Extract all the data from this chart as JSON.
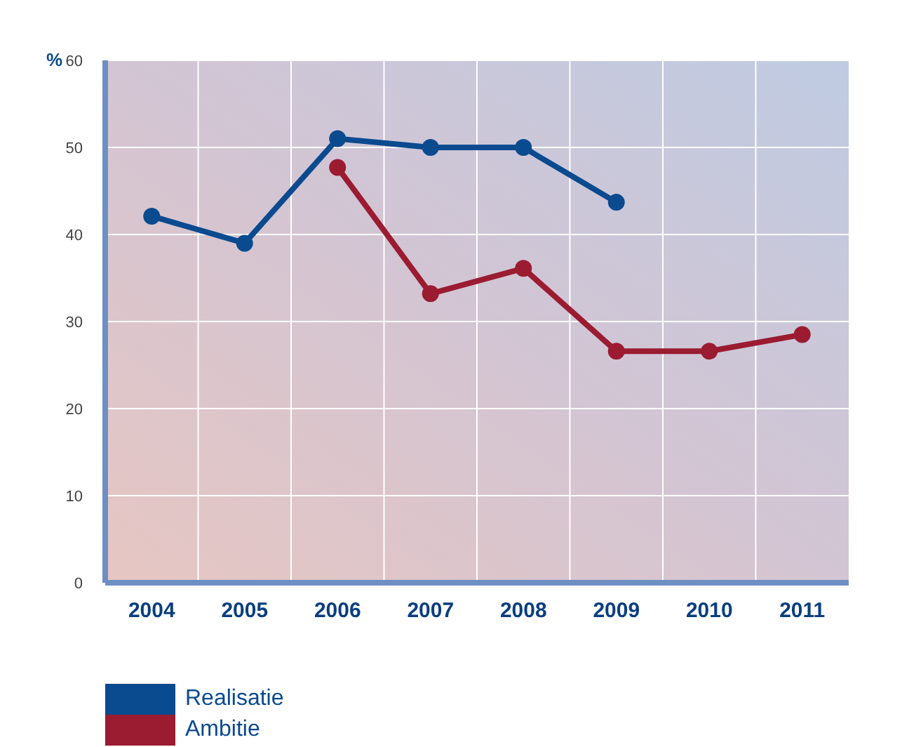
{
  "chart_data": {
    "type": "line",
    "ylabel": "%",
    "categories": [
      "2004",
      "2005",
      "2006",
      "2007",
      "2008",
      "2009",
      "2010",
      "2011"
    ],
    "series": [
      {
        "name": "Realisatie",
        "color": "#0a4a8f",
        "values": [
          42.1,
          39,
          51,
          50,
          50,
          43.7,
          null,
          null
        ]
      },
      {
        "name": "Ambitie",
        "color": "#9b1b30",
        "values": [
          null,
          null,
          47.7,
          33.2,
          36.1,
          26.6,
          26.6,
          28.5
        ]
      }
    ],
    "ylim": [
      0,
      60
    ],
    "yticks": [
      0,
      10,
      20,
      30,
      40,
      50,
      60
    ],
    "grid": true,
    "legend": "bottom left",
    "marker": "circle",
    "line_style": "solid"
  }
}
